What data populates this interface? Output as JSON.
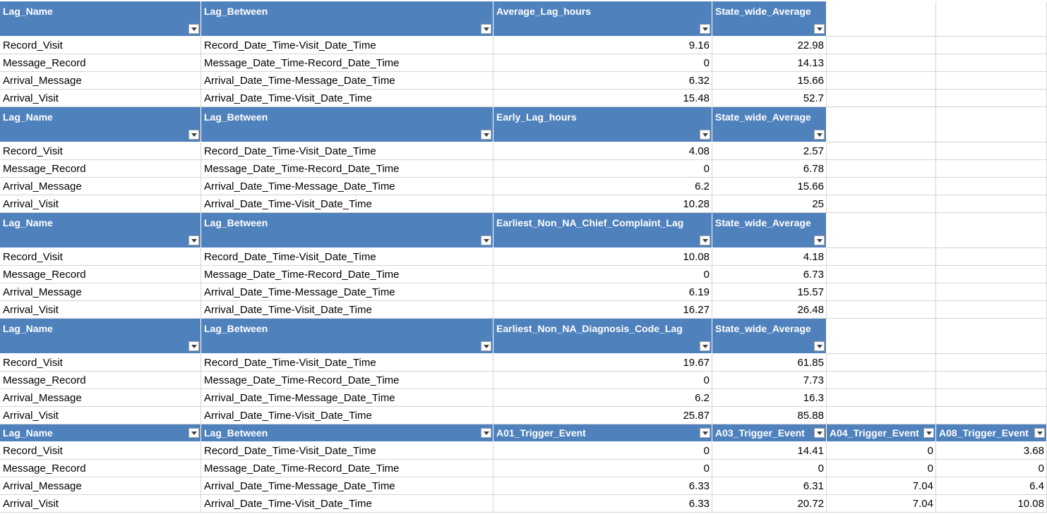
{
  "sheet": {
    "tables": [
      {
        "headers": [
          "Lag_Name",
          "Lag_Between",
          "Average_Lag_hours",
          "State_wide_Average"
        ],
        "rows": [
          [
            "Record_Visit",
            "Record_Date_Time-Visit_Date_Time",
            "9.16",
            "22.98"
          ],
          [
            "Message_Record",
            "Message_Date_Time-Record_Date_Time",
            "0",
            "14.13"
          ],
          [
            "Arrival_Message",
            "Arrival_Date_Time-Message_Date_Time",
            "6.32",
            "15.66"
          ],
          [
            "Arrival_Visit",
            "Arrival_Date_Time-Visit_Date_Time",
            "15.48",
            "52.7"
          ]
        ]
      },
      {
        "headers": [
          "Lag_Name",
          "Lag_Between",
          "Early_Lag_hours",
          "State_wide_Average"
        ],
        "rows": [
          [
            "Record_Visit",
            "Record_Date_Time-Visit_Date_Time",
            "4.08",
            "2.57"
          ],
          [
            "Message_Record",
            "Message_Date_Time-Record_Date_Time",
            "0",
            "6.78"
          ],
          [
            "Arrival_Message",
            "Arrival_Date_Time-Message_Date_Time",
            "6.2",
            "15.66"
          ],
          [
            "Arrival_Visit",
            "Arrival_Date_Time-Visit_Date_Time",
            "10.28",
            "25"
          ]
        ]
      },
      {
        "headers": [
          "Lag_Name",
          "Lag_Between",
          "Earliest_Non_NA_Chief_Complaint_Lag",
          "State_wide_Average"
        ],
        "rows": [
          [
            "Record_Visit",
            "Record_Date_Time-Visit_Date_Time",
            "10.08",
            "4.18"
          ],
          [
            "Message_Record",
            "Message_Date_Time-Record_Date_Time",
            "0",
            "6.73"
          ],
          [
            "Arrival_Message",
            "Arrival_Date_Time-Message_Date_Time",
            "6.19",
            "15.57"
          ],
          [
            "Arrival_Visit",
            "Arrival_Date_Time-Visit_Date_Time",
            "16.27",
            "26.48"
          ]
        ]
      },
      {
        "headers": [
          "Lag_Name",
          "Lag_Between",
          "Earliest_Non_NA_Diagnosis_Code_Lag",
          "State_wide_Average"
        ],
        "rows": [
          [
            "Record_Visit",
            "Record_Date_Time-Visit_Date_Time",
            "19.67",
            "61.85"
          ],
          [
            "Message_Record",
            "Message_Date_Time-Record_Date_Time",
            "0",
            "7.73"
          ],
          [
            "Arrival_Message",
            "Arrival_Date_Time-Message_Date_Time",
            "6.2",
            "16.3"
          ],
          [
            "Arrival_Visit",
            "Arrival_Date_Time-Visit_Date_Time",
            "25.87",
            "85.88"
          ]
        ]
      },
      {
        "headers": [
          "Lag_Name",
          "Lag_Between",
          "A01_Trigger_Event",
          "A03_Trigger_Event",
          "A04_Trigger_Event",
          "A08_Trigger_Event"
        ],
        "rows": [
          [
            "Record_Visit",
            "Record_Date_Time-Visit_Date_Time",
            "0",
            "14.41",
            "0",
            "3.68"
          ],
          [
            "Message_Record",
            "Message_Date_Time-Record_Date_Time",
            "0",
            "0",
            "0",
            "0"
          ],
          [
            "Arrival_Message",
            "Arrival_Date_Time-Message_Date_Time",
            "6.33",
            "6.31",
            "7.04",
            "6.4"
          ],
          [
            "Arrival_Visit",
            "Arrival_Date_Time-Visit_Date_Time",
            "6.33",
            "20.72",
            "7.04",
            "10.08"
          ]
        ]
      }
    ],
    "colors": {
      "header_fill": "#4f81bd",
      "header_text": "#ffffff",
      "gridline": "#d4d4d4"
    },
    "icons": {
      "filter": "filter-dropdown-icon"
    }
  }
}
